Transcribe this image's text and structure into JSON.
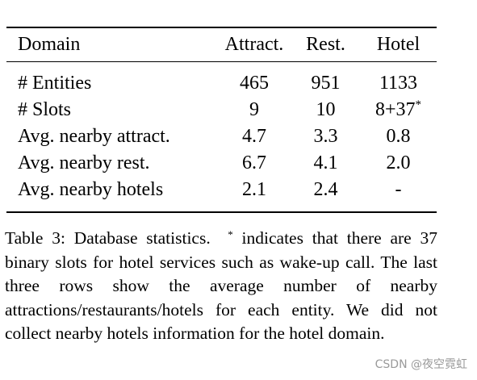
{
  "table": {
    "headers": [
      "Domain",
      "Attract.",
      "Rest.",
      "Hotel"
    ],
    "rows": [
      {
        "label": "# Entities",
        "attract": "465",
        "rest": "951",
        "hotel": "1133",
        "hotel_sup": ""
      },
      {
        "label": "# Slots",
        "attract": "9",
        "rest": "10",
        "hotel": "8+37",
        "hotel_sup": "*"
      },
      {
        "label": "Avg. nearby attract.",
        "attract": "4.7",
        "rest": "3.3",
        "hotel": "0.8",
        "hotel_sup": ""
      },
      {
        "label": "Avg. nearby rest.",
        "attract": "6.7",
        "rest": "4.1",
        "hotel": "2.0",
        "hotel_sup": ""
      },
      {
        "label": "Avg. nearby hotels",
        "attract": "2.1",
        "rest": "2.4",
        "hotel": "-",
        "hotel_sup": ""
      }
    ]
  },
  "caption": {
    "prefix": "Table 3: Database statistics.",
    "star": "*",
    "text": "indicates that there are 37 binary slots for hotel services such as wake-up call. The last three rows show the average number of nearby attractions/restaurants/hotels for each entity.  We did not collect nearby hotels information for the hotel domain."
  },
  "watermark": "CSDN @夜空霓虹"
}
